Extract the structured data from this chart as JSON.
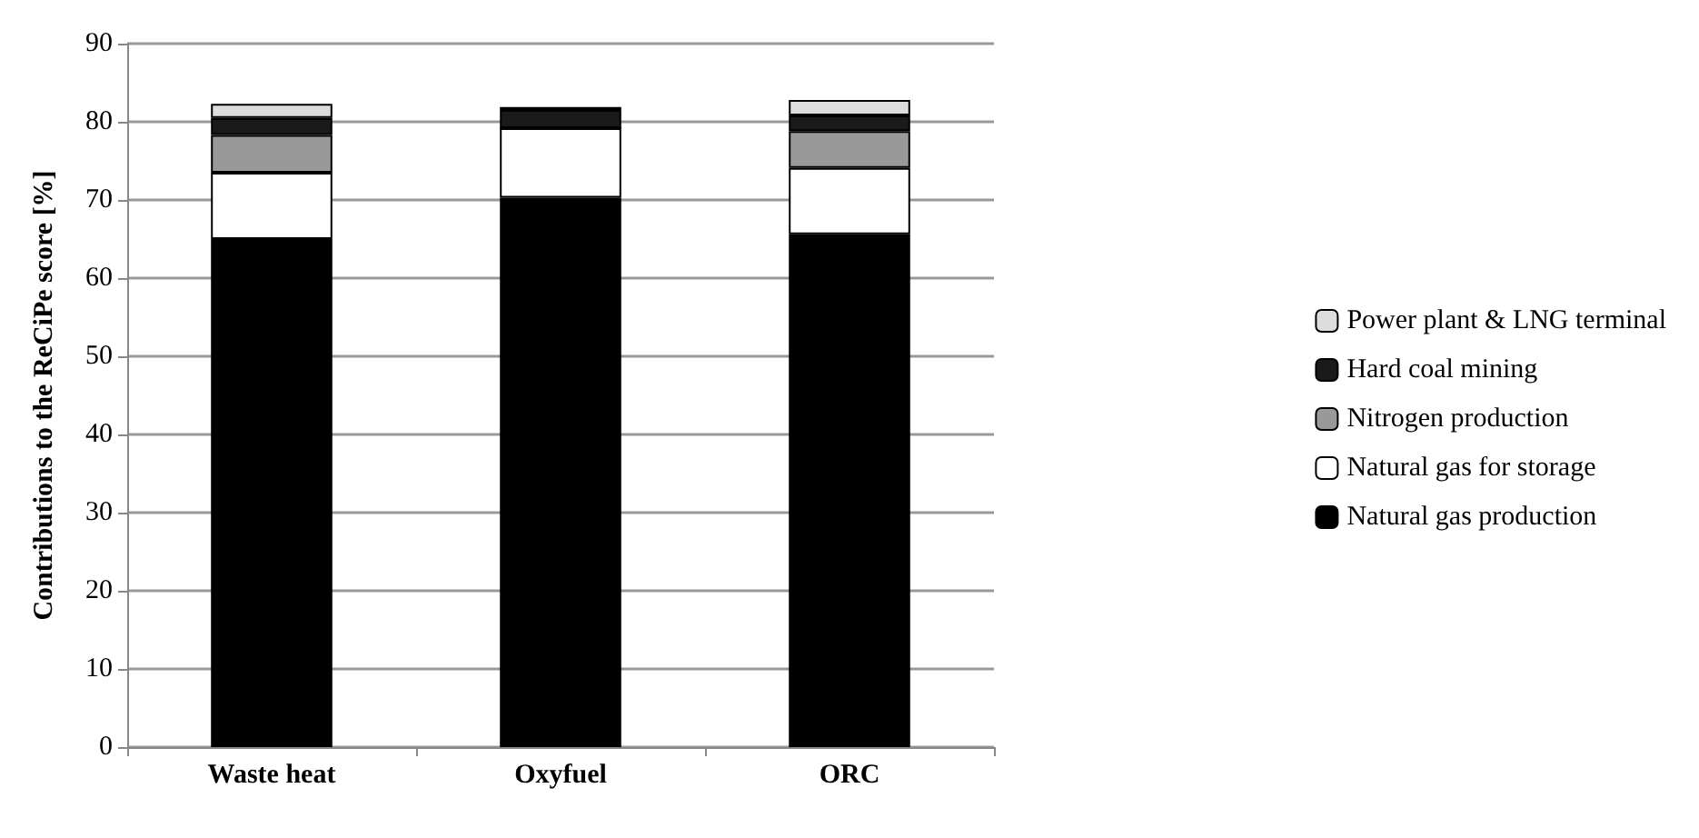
{
  "chart_data": {
    "type": "bar",
    "stacked": true,
    "ylabel": "Contributions to the ReCiPe score [%]",
    "categories": [
      "Waste heat",
      "Oxyfuel",
      "ORC"
    ],
    "series": [
      {
        "name": "Natural gas production",
        "color": "#000000",
        "values": [
          65,
          70.3,
          65.6
        ]
      },
      {
        "name": "Natural gas for storage",
        "color": "#ffffff",
        "values": [
          8.5,
          8.9,
          8.5
        ]
      },
      {
        "name": "Nitrogen production",
        "color": "#999999",
        "values": [
          4.8,
          0,
          4.7
        ]
      },
      {
        "name": "Hard coal mining",
        "color": "#1a1a1a",
        "values": [
          2.2,
          2.3,
          2.0
        ]
      },
      {
        "name": "Power plant & LNG terminal",
        "color": "#dddddd",
        "values": [
          1.8,
          0.4,
          2.0
        ]
      }
    ],
    "ylim": [
      0,
      90
    ],
    "yticks": [
      0,
      10,
      20,
      30,
      40,
      50,
      60,
      70,
      80,
      90
    ],
    "grid": "y",
    "legend": "right"
  }
}
